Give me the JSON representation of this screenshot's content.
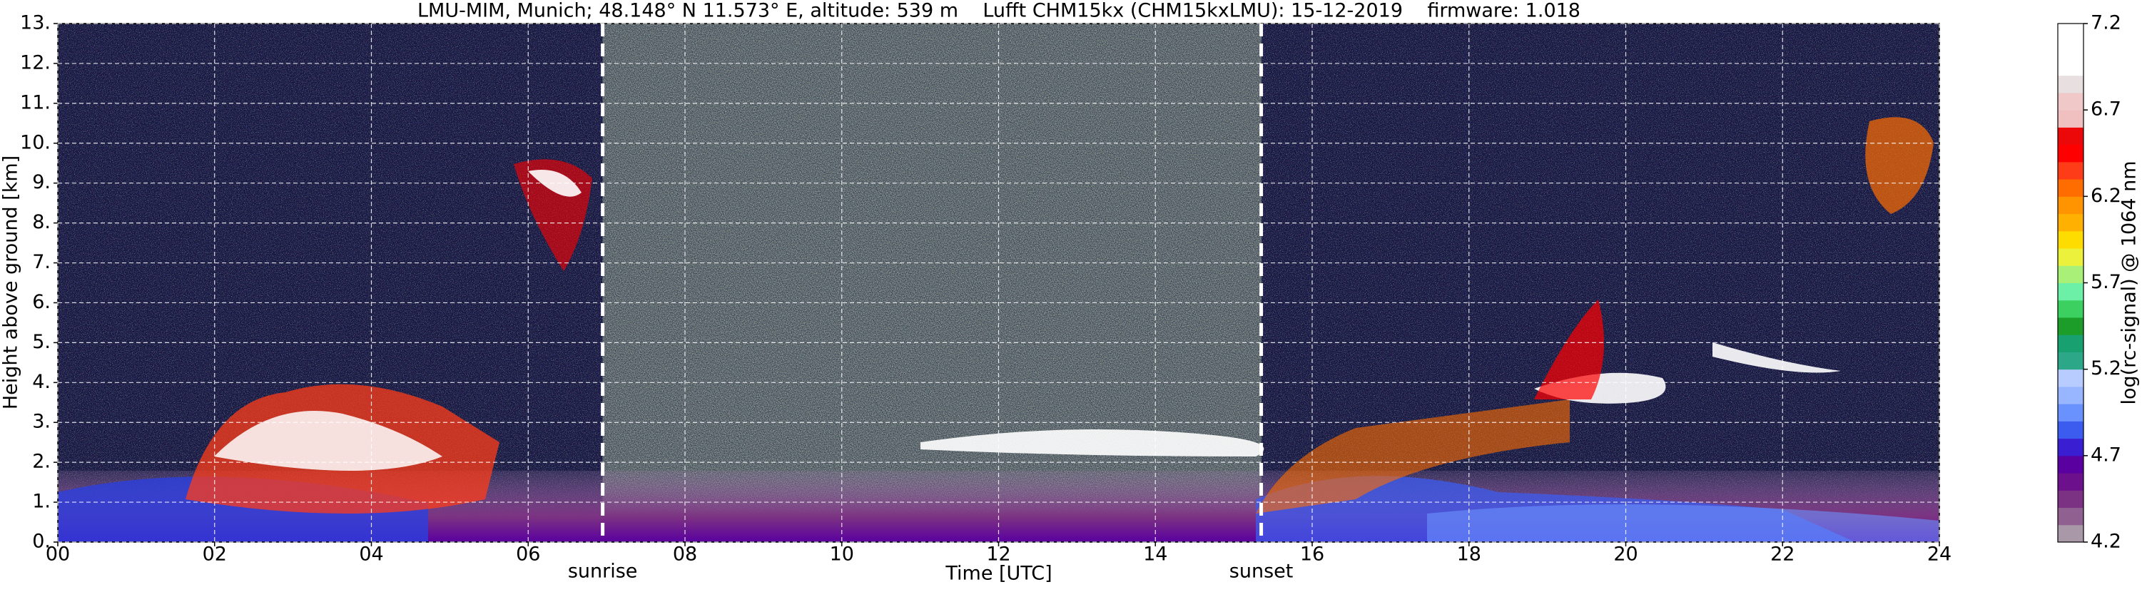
{
  "chart_data": {
    "type": "heatmap",
    "title": "LMU-MIM, Munich; 48.148° N 11.573° E, altitude: 539 m    Lufft CHM15kx (CHM15kxLMU): 15-12-2019    firmware: 1.018",
    "xlabel": "Time [UTC]",
    "ylabel": "Height above ground [km]",
    "xlim": [
      0,
      24
    ],
    "xticks": [
      {
        "value": 0,
        "label": "00"
      },
      {
        "value": 2,
        "label": "02"
      },
      {
        "value": 4,
        "label": "04"
      },
      {
        "value": 6,
        "label": "06"
      },
      {
        "value": 8,
        "label": "08"
      },
      10,
      12,
      14,
      16,
      18,
      20,
      22,
      24
    ],
    "ylim": [
      0,
      13
    ],
    "yticks": [
      {
        "value": 0,
        "label": "0."
      },
      {
        "value": 1,
        "label": "1."
      },
      {
        "value": 2,
        "label": "2."
      },
      {
        "value": 3,
        "label": "3."
      },
      {
        "value": 4,
        "label": "4."
      },
      {
        "value": 5,
        "label": "5."
      },
      {
        "value": 6,
        "label": "6."
      },
      {
        "value": 7,
        "label": "7."
      },
      {
        "value": 8,
        "label": "8."
      },
      {
        "value": 9,
        "label": "9."
      },
      {
        "value": 10,
        "label": "10."
      },
      {
        "value": 11,
        "label": "11."
      },
      {
        "value": 12,
        "label": "12."
      },
      {
        "value": 13,
        "label": "13."
      }
    ],
    "grid": true,
    "annotations": [
      {
        "text": "sunrise",
        "x": 6.95
      },
      {
        "text": "sunset",
        "x": 15.35
      }
    ],
    "colorbar": {
      "label": "log(rc-signal) @ 1064 nm",
      "lim": [
        4.2,
        7.2
      ],
      "ticks": [
        4.2,
        4.7,
        5.2,
        5.7,
        6.2,
        6.7,
        7.2
      ],
      "colors": [
        "#a898a8",
        "#906090",
        "#7c3282",
        "#6c108c",
        "#5a00a0",
        "#3a1ed2",
        "#3c5cf0",
        "#6a92ff",
        "#98b6ff",
        "#b8ccff",
        "#2ca888",
        "#18a070",
        "#1c9c28",
        "#3cd060",
        "#6cf0a8",
        "#a8f078",
        "#ecf23c",
        "#ffdc00",
        "#ffb000",
        "#ff9400",
        "#ff6c00",
        "#ff3c18",
        "#ff0000",
        "#ec0808",
        "#f0c0c0",
        "#f0c8c8",
        "#e8e0e0",
        "#ffffff",
        "#ffffff",
        "#ffffff"
      ]
    }
  }
}
